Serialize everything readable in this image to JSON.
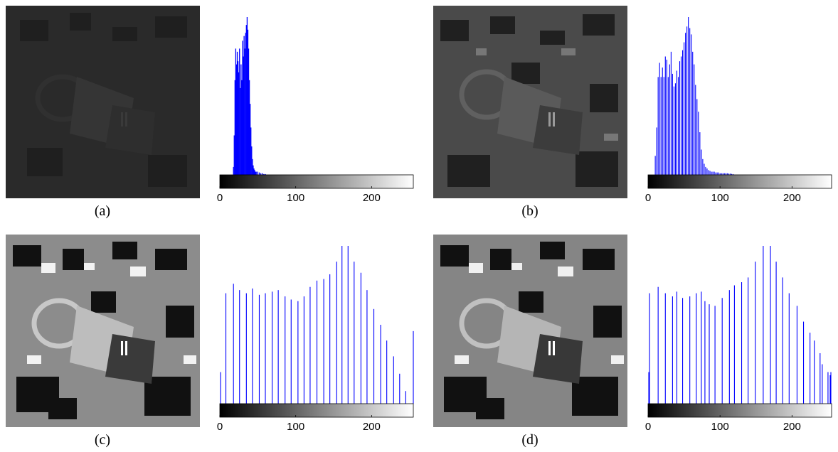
{
  "panels": [
    {
      "caption": "(a)",
      "image_tone": "dark"
    },
    {
      "caption": "(b)",
      "image_tone": "medium"
    },
    {
      "caption": "(c)",
      "image_tone": "high-contrast"
    },
    {
      "caption": "(d)",
      "image_tone": "high-contrast"
    }
  ],
  "chart_data": [
    {
      "type": "bar",
      "panel": "(a)",
      "tick_labels": [
        "0",
        "100",
        "200"
      ],
      "xlim": [
        0,
        255
      ],
      "color": "#0000ff",
      "x": [
        18,
        19,
        20,
        21,
        22,
        23,
        24,
        25,
        26,
        27,
        28,
        29,
        30,
        31,
        32,
        33,
        34,
        35,
        36,
        37,
        38,
        39,
        40,
        41,
        42,
        43,
        44,
        45,
        46,
        47,
        48,
        50,
        52,
        54,
        56,
        58,
        60
      ],
      "values": [
        0.05,
        0.25,
        0.6,
        0.8,
        0.7,
        0.78,
        0.72,
        0.65,
        0.8,
        0.55,
        0.7,
        0.6,
        0.85,
        0.75,
        0.88,
        0.8,
        0.9,
        0.95,
        1.0,
        0.92,
        0.8,
        0.6,
        0.45,
        0.3,
        0.18,
        0.1,
        0.06,
        0.04,
        0.03,
        0.02,
        0.02,
        0.02,
        0.015,
        0.01,
        0.01,
        0.005,
        0.005
      ]
    },
    {
      "type": "bar",
      "panel": "(b)",
      "tick_labels": [
        "0",
        "100",
        "200"
      ],
      "xlim": [
        0,
        255
      ],
      "color": "#0000ff",
      "x": [
        10,
        12,
        14,
        16,
        18,
        20,
        22,
        24,
        26,
        28,
        30,
        32,
        34,
        36,
        38,
        40,
        42,
        44,
        46,
        48,
        50,
        52,
        54,
        56,
        58,
        60,
        62,
        64,
        66,
        68,
        70,
        72,
        74,
        76,
        78,
        80,
        82,
        84,
        86,
        88,
        90,
        92,
        94,
        96,
        98,
        100,
        102,
        104,
        106,
        108,
        110,
        112,
        114,
        116,
        118
      ],
      "values": [
        0.12,
        0.3,
        0.62,
        0.71,
        0.62,
        0.68,
        0.62,
        0.75,
        0.73,
        0.62,
        0.7,
        0.78,
        0.64,
        0.56,
        0.58,
        0.66,
        0.62,
        0.72,
        0.75,
        0.79,
        0.84,
        0.9,
        0.94,
        1.0,
        0.93,
        0.89,
        0.78,
        0.7,
        0.57,
        0.48,
        0.4,
        0.27,
        0.16,
        0.1,
        0.07,
        0.05,
        0.04,
        0.03,
        0.025,
        0.02,
        0.02,
        0.02,
        0.015,
        0.015,
        0.015,
        0.01,
        0.01,
        0.01,
        0.01,
        0.01,
        0.01,
        0.008,
        0.008,
        0.006,
        0.005
      ]
    },
    {
      "type": "bar",
      "panel": "(c)",
      "tick_labels": [
        "0",
        "100",
        "200"
      ],
      "xlim": [
        0,
        255
      ],
      "color": "#0000ff",
      "x": [
        1,
        8,
        18,
        26,
        35,
        43,
        52,
        60,
        69,
        77,
        86,
        94,
        103,
        111,
        119,
        128,
        137,
        145,
        154,
        161,
        169,
        177,
        186,
        194,
        203,
        212,
        220,
        229,
        237,
        245,
        255
      ],
      "values": [
        0.2,
        0.7,
        0.76,
        0.72,
        0.7,
        0.73,
        0.69,
        0.7,
        0.71,
        0.72,
        0.68,
        0.66,
        0.65,
        0.68,
        0.74,
        0.78,
        0.79,
        0.82,
        0.9,
        1.0,
        1.0,
        0.9,
        0.83,
        0.72,
        0.6,
        0.5,
        0.4,
        0.3,
        0.19,
        0.08,
        0.46
      ]
    },
    {
      "type": "bar",
      "panel": "(d)",
      "tick_labels": [
        "0",
        "100",
        "200"
      ],
      "xlim": [
        0,
        255
      ],
      "color": "#0000ff",
      "x": [
        1,
        2,
        14,
        24,
        34,
        40,
        48,
        58,
        67,
        74,
        79,
        85,
        93,
        103,
        113,
        120,
        130,
        139,
        149,
        160,
        170,
        178,
        187,
        196,
        207,
        216,
        225,
        231,
        239,
        242,
        250,
        253,
        254
      ],
      "values": [
        0.2,
        0.7,
        0.74,
        0.7,
        0.68,
        0.71,
        0.67,
        0.68,
        0.7,
        0.71,
        0.65,
        0.63,
        0.62,
        0.67,
        0.72,
        0.75,
        0.77,
        0.8,
        0.9,
        1.0,
        1.0,
        0.9,
        0.8,
        0.7,
        0.62,
        0.52,
        0.45,
        0.4,
        0.32,
        0.25,
        0.2,
        0.18,
        0.2
      ]
    }
  ]
}
